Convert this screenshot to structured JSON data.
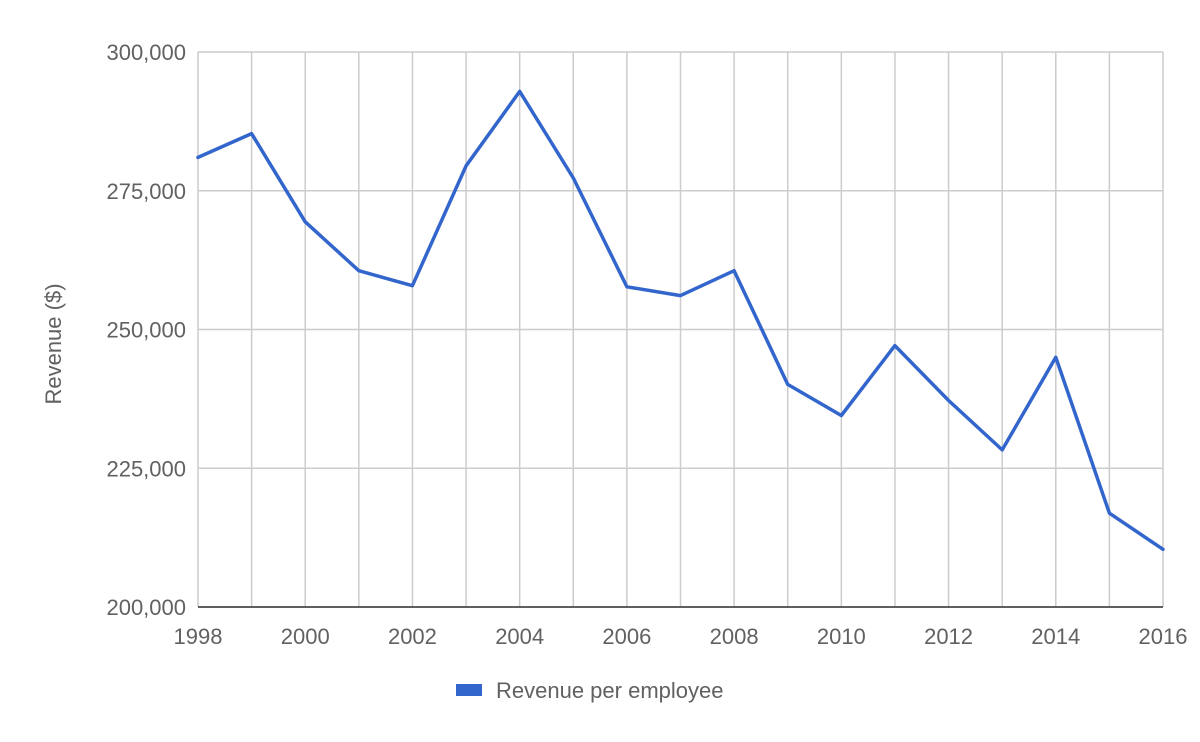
{
  "chart_data": {
    "type": "line",
    "title": "",
    "xlabel": "",
    "ylabel": "Revenue ($)",
    "xlim": [
      1998,
      2016
    ],
    "ylim": [
      200000,
      300000
    ],
    "x_ticks": [
      "1998",
      "2000",
      "2002",
      "2004",
      "2006",
      "2008",
      "2010",
      "2012",
      "2014",
      "2016"
    ],
    "y_ticks": [
      "200,000",
      "225,000",
      "250,000",
      "275,000",
      "300,000"
    ],
    "grid": true,
    "legend_position": "bottom",
    "series": [
      {
        "name": "Revenue per employee",
        "color": "#3366cc",
        "x": [
          1998,
          1999,
          2000,
          2001,
          2002,
          2003,
          2004,
          2005,
          2006,
          2007,
          2008,
          2009,
          2010,
          2011,
          2012,
          2013,
          2014,
          2015,
          2016
        ],
        "values": [
          281000,
          285300,
          269400,
          260600,
          257900,
          279500,
          292900,
          277300,
          257700,
          256100,
          260600,
          240100,
          234500,
          247100,
          237200,
          228300,
          245000,
          216900,
          210400
        ]
      }
    ]
  }
}
